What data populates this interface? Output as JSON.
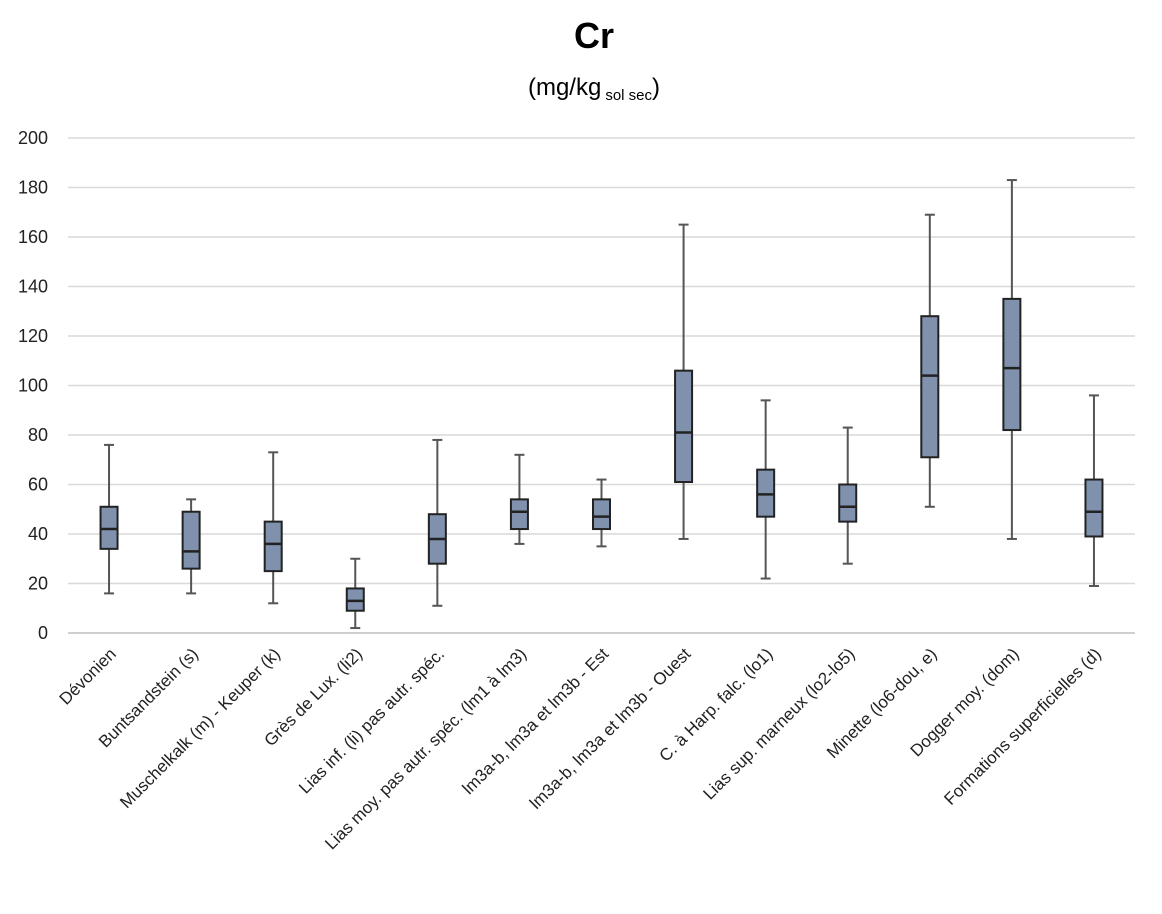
{
  "chart_data": {
    "type": "boxplot",
    "title": "Cr",
    "subtitle": "(mg/kg",
    "subtitle_sub": "sol sec",
    "subtitle_end": ")",
    "ylim": [
      0,
      200
    ],
    "yticks": [
      "0",
      "20",
      "40",
      "60",
      "80",
      "100",
      "120",
      "140",
      "160",
      "180",
      "200"
    ],
    "grid": true,
    "colors": {
      "box_fill": "#7f91ad",
      "box_stroke": "#222222",
      "whisker": "#555555",
      "grid": "#d9d9d9"
    },
    "categories": [
      "Dévonien",
      "Buntsandstein (s)",
      "Muschelkalk (m) - Keuper (k)",
      "Grès de Lux. (li2)",
      "Lias inf. (li) pas autr. spéc.",
      "Lias moy. pas autr. spéc. (lm1 à lm3)",
      "lm3a-b, lm3a et lm3b - Est",
      "lm3a-b, lm3a et lm3b - Ouest",
      "C. à Harp. falc. (lo1)",
      "Lias sup. marneux (lo2-lo5)",
      "Minette (lo6-dou, e)",
      "Dogger moy. (dom)",
      "Formations superficielles (d)"
    ],
    "boxes": [
      {
        "min": 16,
        "q1": 34,
        "median": 42,
        "q3": 51,
        "max": 76
      },
      {
        "min": 16,
        "q1": 26,
        "median": 33,
        "q3": 49,
        "max": 54
      },
      {
        "min": 12,
        "q1": 25,
        "median": 36,
        "q3": 45,
        "max": 73
      },
      {
        "min": 2,
        "q1": 9,
        "median": 13,
        "q3": 18,
        "max": 30
      },
      {
        "min": 11,
        "q1": 28,
        "median": 38,
        "q3": 48,
        "max": 78
      },
      {
        "min": 36,
        "q1": 42,
        "median": 49,
        "q3": 54,
        "max": 72
      },
      {
        "min": 35,
        "q1": 42,
        "median": 47,
        "q3": 54,
        "max": 62
      },
      {
        "min": 38,
        "q1": 61,
        "median": 81,
        "q3": 106,
        "max": 165
      },
      {
        "min": 22,
        "q1": 47,
        "median": 56,
        "q3": 66,
        "max": 94
      },
      {
        "min": 28,
        "q1": 45,
        "median": 51,
        "q3": 60,
        "max": 83
      },
      {
        "min": 51,
        "q1": 71,
        "median": 104,
        "q3": 128,
        "max": 169
      },
      {
        "min": 38,
        "q1": 82,
        "median": 107,
        "q3": 135,
        "max": 183
      },
      {
        "min": 19,
        "q1": 39,
        "median": 49,
        "q3": 62,
        "max": 96
      }
    ]
  }
}
